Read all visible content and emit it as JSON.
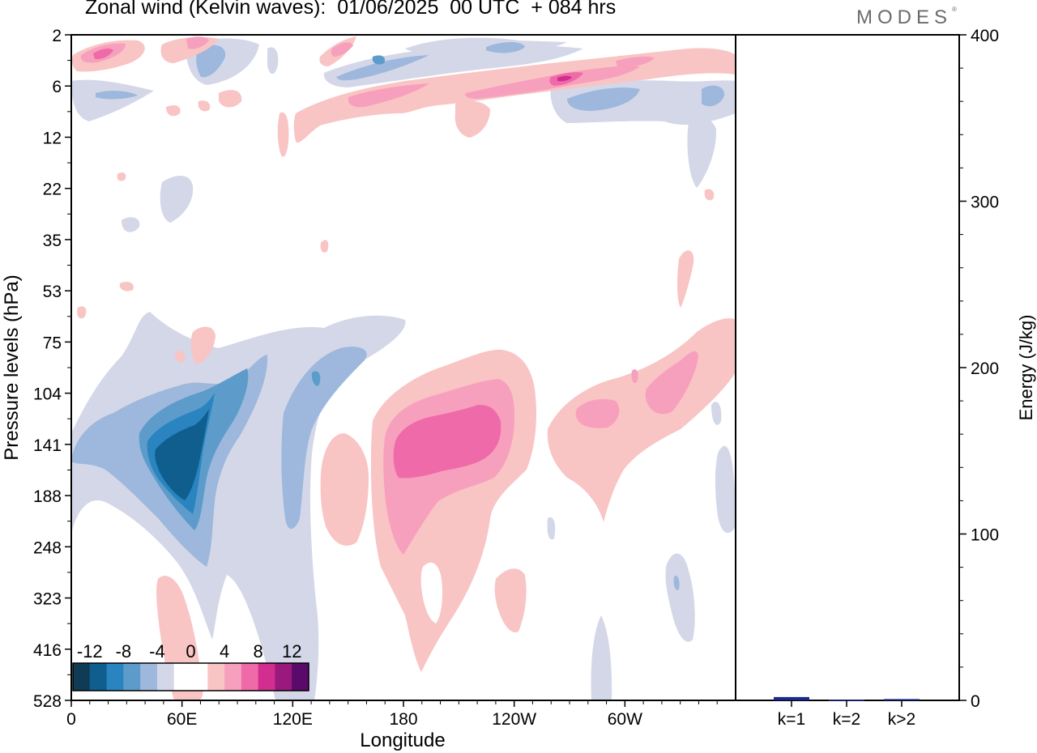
{
  "title": "Zonal wind (Kelvin waves):  01/06/2025  00 UTC  + 084 hrs",
  "brand": "MODES",
  "brand_mark": "®",
  "chart_data": [
    {
      "type": "heatmap",
      "xlabel": "Longitude",
      "ylabel": "Pressure levels (hPa)",
      "x_ticks": [
        "0",
        "60E",
        "120E",
        "180",
        "120W",
        "60W"
      ],
      "x_tick_degrees_east": [
        0,
        60,
        120,
        180,
        240,
        300
      ],
      "xlim_degrees_east": [
        0,
        360
      ],
      "y_ticks": [
        "2",
        "6",
        "12",
        "22",
        "35",
        "53",
        "75",
        "104",
        "141",
        "188",
        "248",
        "323",
        "416",
        "528"
      ],
      "y_ticks_top_to_bottom": true,
      "colorbar": {
        "labels": [
          "-12",
          "-8",
          "-4",
          "0",
          "4",
          "8",
          "12"
        ],
        "levels": [
          -14,
          -12,
          -10,
          -8,
          -6,
          -4,
          -2,
          2,
          4,
          6,
          8,
          10,
          12,
          14
        ],
        "colors": [
          "#0f3b55",
          "#0f5e8e",
          "#2a84c0",
          "#5d9cca",
          "#9db8dc",
          "#d4d7e8",
          "#ffffff",
          "#ffffff",
          "#f9c4c4",
          "#f7a0bd",
          "#ef6aa8",
          "#d22e8f",
          "#99197c",
          "#5a0a6a"
        ]
      },
      "regions": [
        {
          "name": "negative-max-core",
          "value": -10,
          "lon": 60,
          "level": "141"
        },
        {
          "name": "positive-max-core",
          "value": 8,
          "lon": 200,
          "level": "141"
        }
      ]
    },
    {
      "type": "bar",
      "ylabel": "Energy (J/kg)",
      "categories": [
        "k=1",
        "k=2",
        "k>2"
      ],
      "values": [
        2,
        0.4,
        0.8
      ],
      "ylim": [
        0,
        400
      ],
      "y_ticks": [
        "0",
        "100",
        "200",
        "300",
        "400"
      ],
      "bar_color": "#1a2a8c"
    }
  ]
}
